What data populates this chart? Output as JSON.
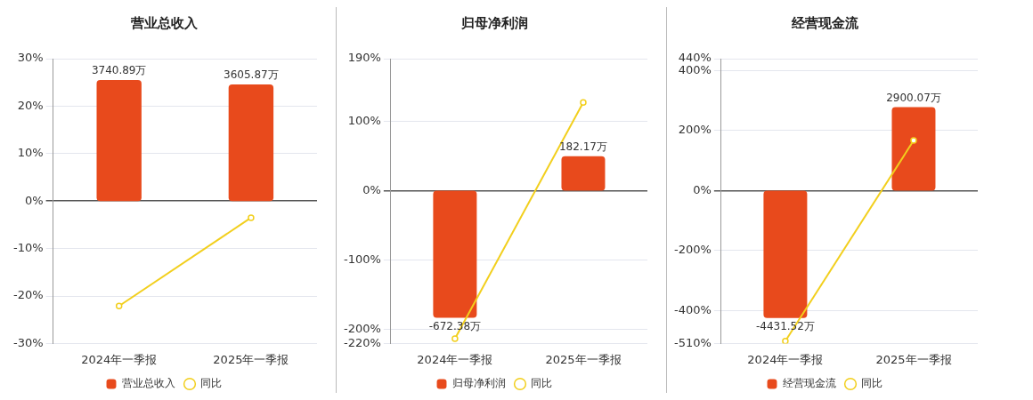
{
  "chart_data": [
    {
      "type": "bar",
      "title": "营业总收入",
      "categories": [
        "2024年一季报",
        "2025年一季报"
      ],
      "series": [
        {
          "name": "营业总收入",
          "color": "#e84a1c",
          "axis": "y2",
          "values": [
            3740.89,
            3605.87
          ],
          "value_labels": [
            "3740.89万",
            "3605.87万"
          ]
        },
        {
          "name": "同比",
          "type": "line",
          "color": "#f2cf1d",
          "values": [
            -22.1,
            -3.5
          ]
        }
      ],
      "ylim": [
        -30,
        30
      ],
      "yticks": [
        {
          "value": 30,
          "label": "30%"
        },
        {
          "value": 20,
          "label": "20%"
        },
        {
          "value": 10,
          "label": "10%"
        },
        {
          "value": 0,
          "label": "0%"
        },
        {
          "value": -10,
          "label": "-10%"
        },
        {
          "value": -20,
          "label": "-20%"
        },
        {
          "value": -30,
          "label": "-30%"
        }
      ],
      "y2lim": [
        -4401,
        4401
      ],
      "grid": "y",
      "legend": "bottom",
      "marker": "circle"
    },
    {
      "type": "bar",
      "title": "归母净利润",
      "categories": [
        "2024年一季报",
        "2025年一季报"
      ],
      "series": [
        {
          "name": "归母净利润",
          "color": "#e84a1c",
          "axis": "y2",
          "values": [
            -672.38,
            182.17
          ],
          "value_labels": [
            "-672.38万",
            "182.17万"
          ]
        },
        {
          "name": "同比",
          "type": "line",
          "color": "#f2cf1d",
          "values": [
            -213,
            127
          ]
        }
      ],
      "ylim": [
        -220,
        190
      ],
      "yticks": [
        {
          "value": 190,
          "label": "190%"
        },
        {
          "value": 100,
          "label": "100%"
        },
        {
          "value": 0,
          "label": "0%"
        },
        {
          "value": -100,
          "label": "-100%"
        },
        {
          "value": -200,
          "label": "-200%"
        },
        {
          "value": -220,
          "label": "-220%"
        }
      ],
      "y2lim": [
        -808,
        698
      ],
      "grid": "y",
      "legend": "bottom",
      "marker": "circle"
    },
    {
      "type": "bar",
      "title": "经营现金流",
      "categories": [
        "2024年一季报",
        "2025年一季报"
      ],
      "series": [
        {
          "name": "经营现金流",
          "color": "#e84a1c",
          "axis": "y2",
          "values": [
            -4431.52,
            2900.07
          ],
          "value_labels": [
            "-4431.52万",
            "2900.07万"
          ]
        },
        {
          "name": "同比",
          "type": "line",
          "color": "#f2cf1d",
          "values": [
            -502,
            167
          ]
        }
      ],
      "ylim": [
        -510,
        440
      ],
      "yticks": [
        {
          "value": 440,
          "label": "440%"
        },
        {
          "value": 400,
          "label": "400%"
        },
        {
          "value": 200,
          "label": "200%"
        },
        {
          "value": 0,
          "label": "0%"
        },
        {
          "value": -200,
          "label": "-200%"
        },
        {
          "value": -400,
          "label": "-400%"
        },
        {
          "value": -510,
          "label": "-510%"
        }
      ],
      "y2lim": [
        -5319,
        4589
      ],
      "grid": "y",
      "legend": "bottom",
      "marker": "circle"
    }
  ]
}
